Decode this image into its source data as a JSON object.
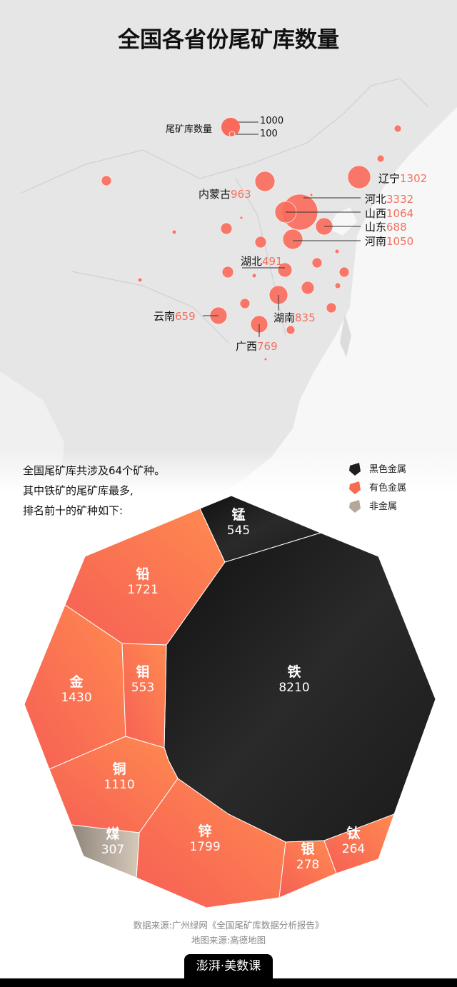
{
  "title": "全国各省份尾矿库数量",
  "map": {
    "legend_label": "尾矿库数量",
    "legend_large": "1000",
    "legend_small": "100",
    "bubble_color": "#f96a5a",
    "provinces": [
      {
        "name": "辽宁",
        "value": "1302"
      },
      {
        "name": "内蒙古",
        "value": "963"
      },
      {
        "name": "河北",
        "value": "3332"
      },
      {
        "name": "山西",
        "value": "1064"
      },
      {
        "name": "山东",
        "value": "688"
      },
      {
        "name": "河南",
        "value": "1050"
      },
      {
        "name": "湖北",
        "value": "491"
      },
      {
        "name": "湖南",
        "value": "835"
      },
      {
        "name": "云南",
        "value": "659"
      },
      {
        "name": "广西",
        "value": "769"
      }
    ]
  },
  "intro": [
    "全国尾矿库共涉及64个矿种。",
    "其中铁矿的尾矿库最多,",
    "排名前十的矿种如下:"
  ],
  "chart_data": {
    "type": "voronoi-treemap",
    "legend": [
      {
        "name": "黑色金属",
        "color": "#1e1e1e"
      },
      {
        "name": "有色金属",
        "color": "#f96a50"
      },
      {
        "name": "非金属",
        "color": "#b3a89a"
      }
    ],
    "items": [
      {
        "name": "铁",
        "value": 8210,
        "group": "黑色金属"
      },
      {
        "name": "锌",
        "value": 1799,
        "group": "有色金属"
      },
      {
        "name": "铅",
        "value": 1721,
        "group": "有色金属"
      },
      {
        "name": "金",
        "value": 1430,
        "group": "有色金属"
      },
      {
        "name": "铜",
        "value": 1110,
        "group": "有色金属"
      },
      {
        "name": "钼",
        "value": 553,
        "group": "有色金属"
      },
      {
        "name": "锰",
        "value": 545,
        "group": "黑色金属"
      },
      {
        "name": "煤",
        "value": 307,
        "group": "非金属"
      },
      {
        "name": "银",
        "value": 278,
        "group": "有色金属"
      },
      {
        "name": "钛",
        "value": 264,
        "group": "有色金属"
      }
    ]
  },
  "footer": {
    "source": "数据来源:广州绿网《全国尾矿库数据分析报告》",
    "map_source": "地图来源:高德地图",
    "logo": "澎湃·美数课"
  }
}
